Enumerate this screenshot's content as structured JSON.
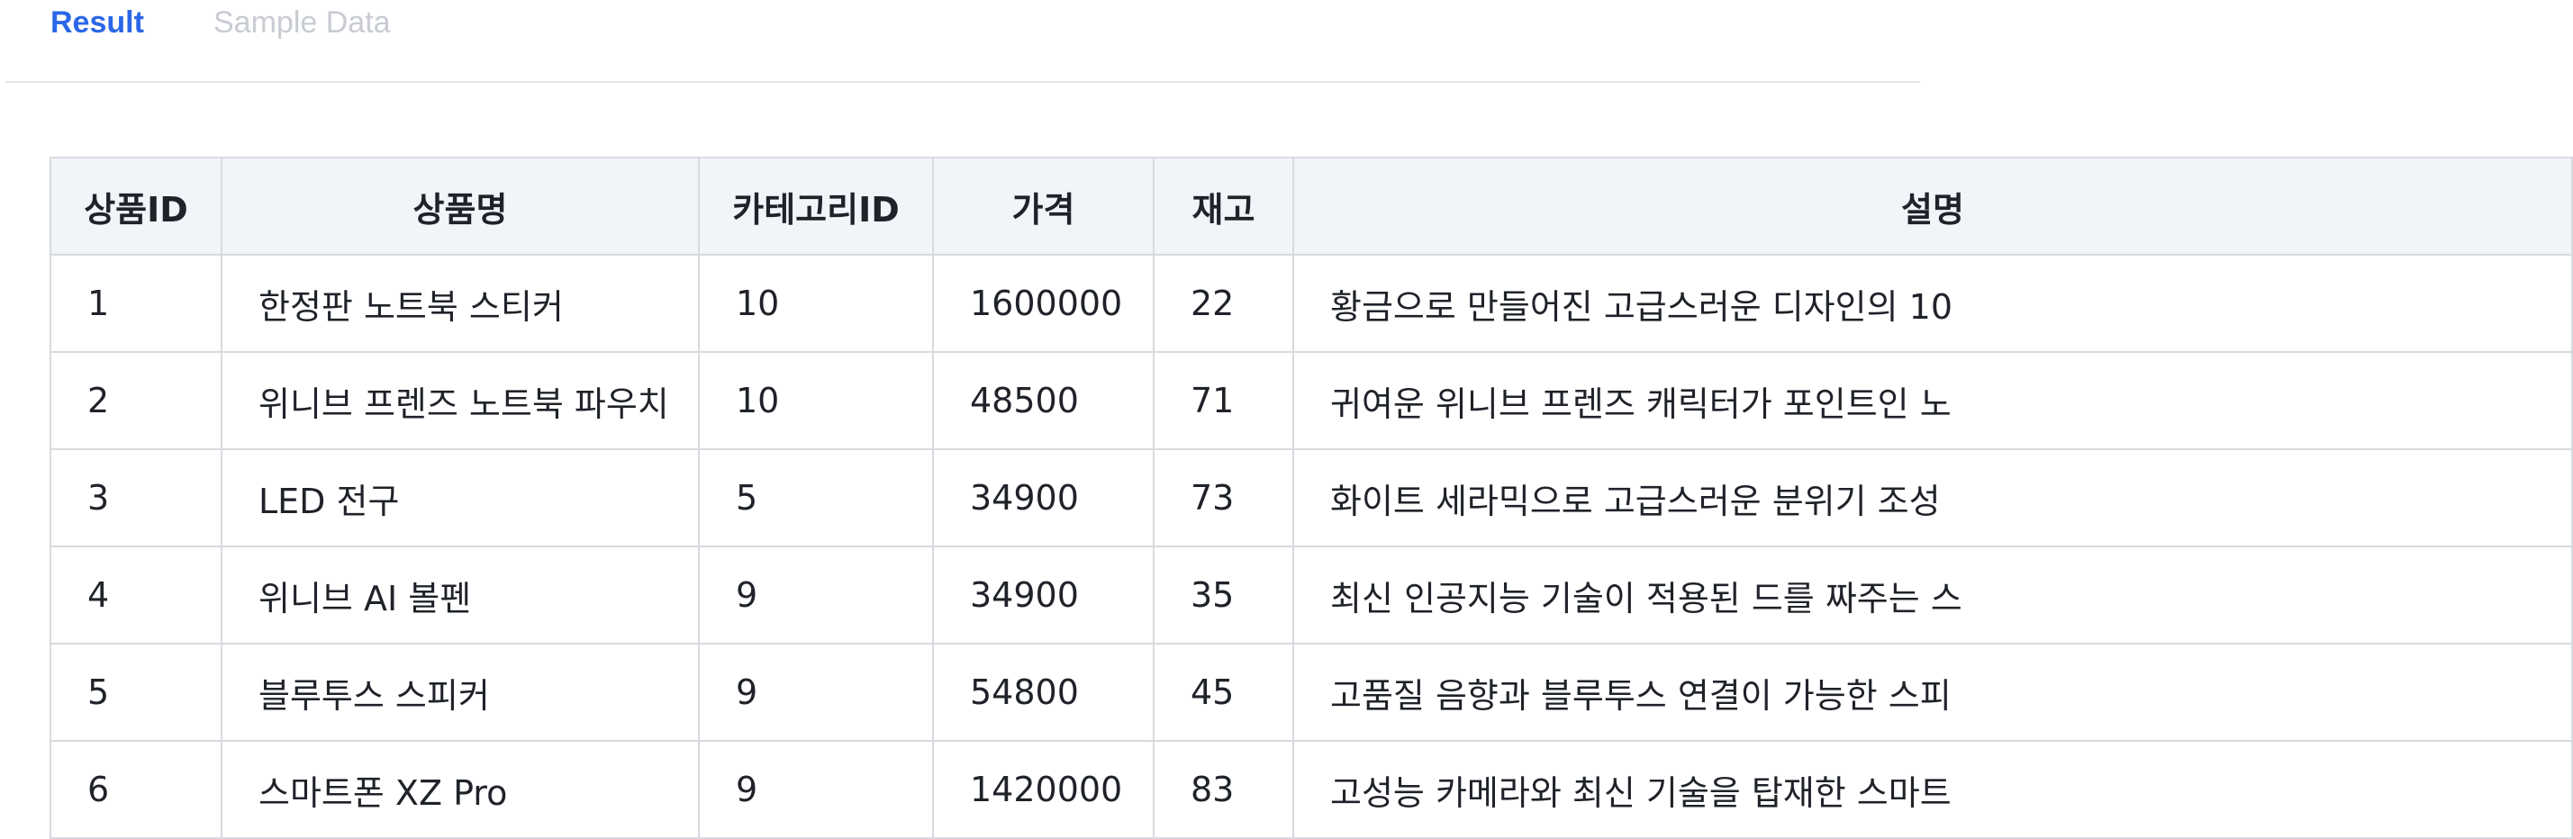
{
  "tabs": [
    {
      "label": "Result",
      "active": true
    },
    {
      "label": "Sample Data",
      "active": false
    }
  ],
  "colors": {
    "active_tab": "#2b67e6",
    "inactive_tab": "#c8ccd2",
    "header_bg": "#f1f4f9",
    "border": "#d7dade"
  },
  "table": {
    "columns": [
      "상품ID",
      "상품명",
      "카테고리ID",
      "가격",
      "재고",
      "설명"
    ],
    "rows": [
      [
        "1",
        "한정판 노트북 스티커",
        "10",
        "1600000",
        "22",
        "황금으로 만들어진 고급스러운 디자인의 10"
      ],
      [
        "2",
        "위니브 프렌즈 노트북 파우치",
        "10",
        "48500",
        "71",
        "귀여운 위니브 프렌즈 캐릭터가 포인트인 노"
      ],
      [
        "3",
        "LED 전구",
        "5",
        "34900",
        "73",
        "화이트 세라믹으로 고급스러운 분위기 조성"
      ],
      [
        "4",
        "위니브 AI 볼펜",
        "9",
        "34900",
        "35",
        "최신 인공지능 기술이 적용된 드를 짜주는 스"
      ],
      [
        "5",
        "블루투스 스피커",
        "9",
        "54800",
        "45",
        "고품질 음향과 블루투스 연결이 가능한 스피"
      ],
      [
        "6",
        "스마트폰 XZ Pro",
        "9",
        "1420000",
        "83",
        "고성능 카메라와 최신 기술을 탑재한 스마트"
      ]
    ]
  }
}
